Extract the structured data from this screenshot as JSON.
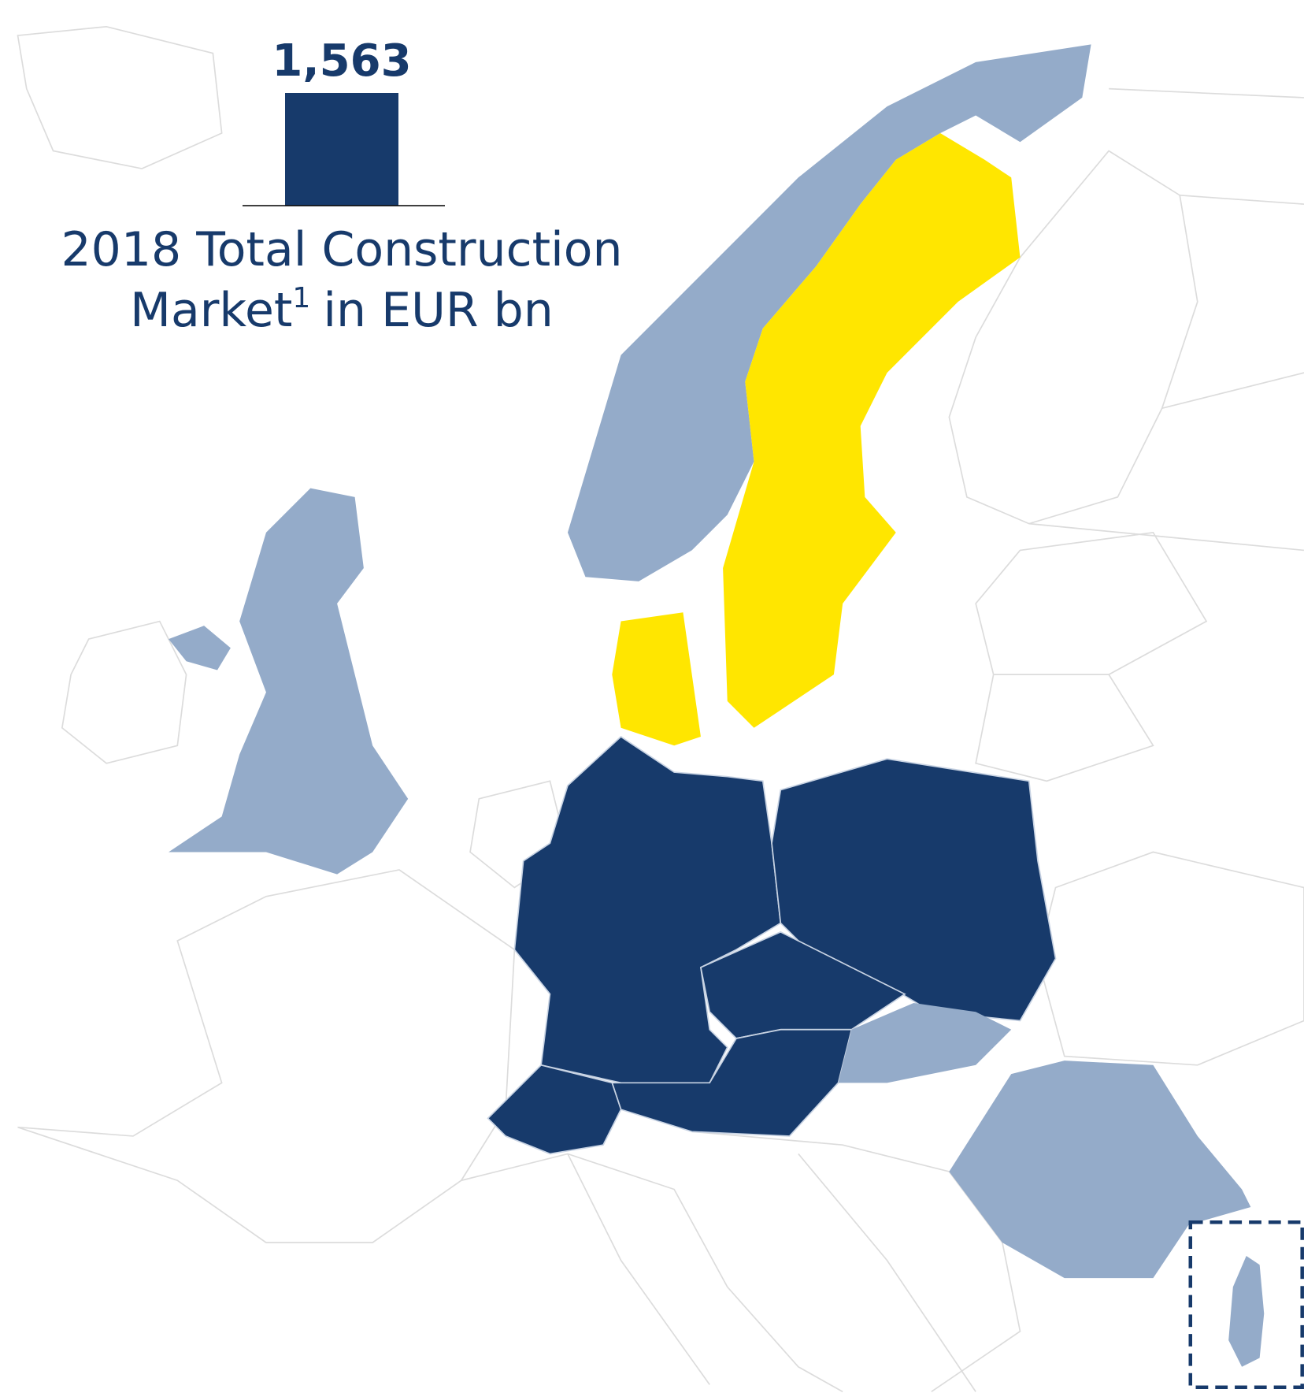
{
  "chart_data": {
    "type": "bar",
    "values": [
      1563
    ],
    "value_labels": [
      "1,563"
    ],
    "color": "#173a6b",
    "title_line1": "2018 Total Construction",
    "title_line2": "Market",
    "title_footnote": "1",
    "title_unit": "in EUR bn"
  }
}
